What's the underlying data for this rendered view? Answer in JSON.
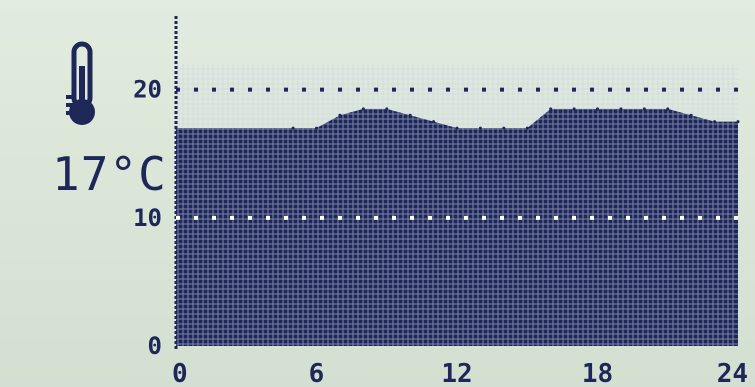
{
  "display": {
    "current_temperature": "17°C",
    "thermometer_icon": "thermometer-icon",
    "colors": {
      "pixel_on": "#1e2758",
      "background": "#dce7d9",
      "grid_gap": "#c9d3ea"
    }
  },
  "chart_data": {
    "type": "area",
    "title": "",
    "xlabel": "",
    "ylabel": "",
    "xlim": [
      0,
      24
    ],
    "ylim": [
      0,
      22
    ],
    "x_ticks": [
      "0",
      "6",
      "12",
      "18",
      "24"
    ],
    "y_ticks": [
      "0",
      "10",
      "20"
    ],
    "reference_lines": [
      {
        "y": 20,
        "style": "dotted"
      },
      {
        "y": 10,
        "style": "dotted"
      }
    ],
    "x": [
      0,
      5,
      6,
      7,
      8,
      9,
      10,
      11,
      12,
      13,
      14,
      15,
      16,
      17,
      18,
      19,
      20,
      21,
      22,
      23,
      24
    ],
    "values": [
      17,
      17,
      17,
      18,
      18.5,
      18.5,
      18,
      17.5,
      17,
      17,
      17,
      17,
      18.5,
      18.5,
      18.5,
      18.5,
      18.5,
      18.5,
      18,
      17.5,
      17.5
    ]
  }
}
